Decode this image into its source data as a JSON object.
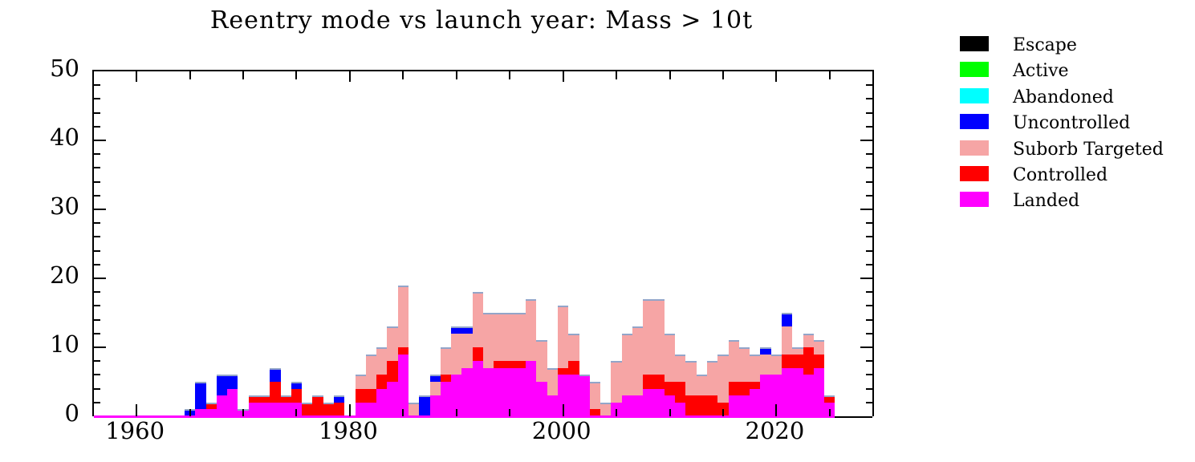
{
  "chart_data": {
    "type": "bar",
    "variant": "stacked-histogram-by-year",
    "title": "Reentry mode vs launch year: Mass > 10t",
    "xlabel": "",
    "ylabel": "",
    "x_axis": {
      "range": [
        1956,
        2029
      ],
      "labeled_tick_years": [
        1960,
        1980,
        2000,
        2020
      ],
      "tick_labels": [
        "1960",
        "1980",
        "2000",
        "2020"
      ],
      "minor_tick_step_years": 5,
      "grid": "off"
    },
    "y_axis": {
      "range": [
        0,
        50
      ],
      "tick_labels": [
        "0",
        "10",
        "20",
        "30",
        "40",
        "50"
      ],
      "major_step": 10,
      "minor_step": 2,
      "grid": "off"
    },
    "stack_order_bottom_to_top": [
      "Landed",
      "Controlled",
      "Suborb Targeted",
      "Uncontrolled"
    ],
    "zero_series": [
      "Escape",
      "Active",
      "Abandoned"
    ],
    "baseline_color": "#FF00FF",
    "outline_color": "#93a5c9",
    "categories": [
      1965,
      1966,
      1967,
      1968,
      1969,
      1970,
      1971,
      1972,
      1973,
      1974,
      1975,
      1976,
      1977,
      1978,
      1979,
      1980,
      1981,
      1982,
      1983,
      1984,
      1985,
      1986,
      1987,
      1988,
      1989,
      1990,
      1991,
      1992,
      1993,
      1994,
      1995,
      1996,
      1997,
      1998,
      1999,
      2000,
      2001,
      2002,
      2003,
      2004,
      2005,
      2006,
      2007,
      2008,
      2009,
      2010,
      2011,
      2012,
      2013,
      2014,
      2015,
      2016,
      2017,
      2018,
      2019,
      2020,
      2021,
      2022,
      2023,
      2024,
      2025
    ],
    "series": [
      {
        "name": "Landed",
        "color": "#FF00FF",
        "values": [
          0,
          1,
          1,
          3,
          4,
          1,
          2,
          2,
          2,
          2,
          2,
          0,
          0,
          0,
          0,
          0,
          2,
          2,
          4,
          5,
          9,
          0,
          0,
          3,
          5,
          6,
          7,
          8,
          7,
          7,
          7,
          7,
          8,
          5,
          3,
          6,
          6,
          6,
          0,
          0,
          2,
          3,
          3,
          4,
          4,
          3,
          2,
          0,
          0,
          0,
          0,
          3,
          3,
          4,
          6,
          6,
          7,
          7,
          6,
          7,
          2
        ]
      },
      {
        "name": "Controlled",
        "color": "#FF0000",
        "values": [
          0,
          0,
          1,
          0,
          0,
          0,
          1,
          1,
          3,
          1,
          2,
          2,
          3,
          2,
          2,
          0,
          2,
          2,
          2,
          3,
          1,
          0,
          0,
          0,
          1,
          0,
          0,
          2,
          0,
          1,
          1,
          1,
          0,
          0,
          0,
          1,
          2,
          0,
          1,
          0,
          0,
          0,
          0,
          2,
          2,
          2,
          3,
          3,
          3,
          3,
          2,
          2,
          2,
          1,
          0,
          0,
          2,
          2,
          4,
          2,
          1
        ]
      },
      {
        "name": "Suborb Targeted",
        "color": "#F6A5A5",
        "values": [
          0,
          0,
          0,
          0,
          0,
          0,
          0,
          0,
          0,
          0,
          0,
          0,
          0,
          0,
          0,
          0,
          2,
          5,
          4,
          5,
          9,
          2,
          0,
          2,
          4,
          6,
          5,
          8,
          8,
          7,
          7,
          7,
          9,
          6,
          4,
          9,
          4,
          0,
          4,
          2,
          6,
          9,
          10,
          11,
          11,
          7,
          4,
          5,
          3,
          5,
          7,
          6,
          5,
          4,
          3,
          3,
          4,
          1,
          2,
          2,
          0
        ]
      },
      {
        "name": "Uncontrolled",
        "color": "#0000FF",
        "values": [
          1,
          4,
          0,
          3,
          2,
          0,
          0,
          0,
          2,
          0,
          1,
          0,
          0,
          0,
          1,
          0,
          0,
          0,
          0,
          0,
          0,
          0,
          3,
          1,
          0,
          1,
          1,
          0,
          0,
          0,
          0,
          0,
          0,
          0,
          0,
          0,
          0,
          0,
          0,
          0,
          0,
          0,
          0,
          0,
          0,
          0,
          0,
          0,
          0,
          0,
          0,
          0,
          0,
          0,
          1,
          0,
          2,
          0,
          0,
          0,
          0
        ]
      }
    ]
  },
  "legend": {
    "items": [
      {
        "label": "Escape",
        "color": "#000000"
      },
      {
        "label": "Active",
        "color": "#00FF00"
      },
      {
        "label": "Abandoned",
        "color": "#00FFFF"
      },
      {
        "label": "Uncontrolled",
        "color": "#0000FF"
      },
      {
        "label": "Suborb Targeted",
        "color": "#F6A5A5"
      },
      {
        "label": "Controlled",
        "color": "#FF0000"
      },
      {
        "label": "Landed",
        "color": "#FF00FF"
      }
    ]
  }
}
